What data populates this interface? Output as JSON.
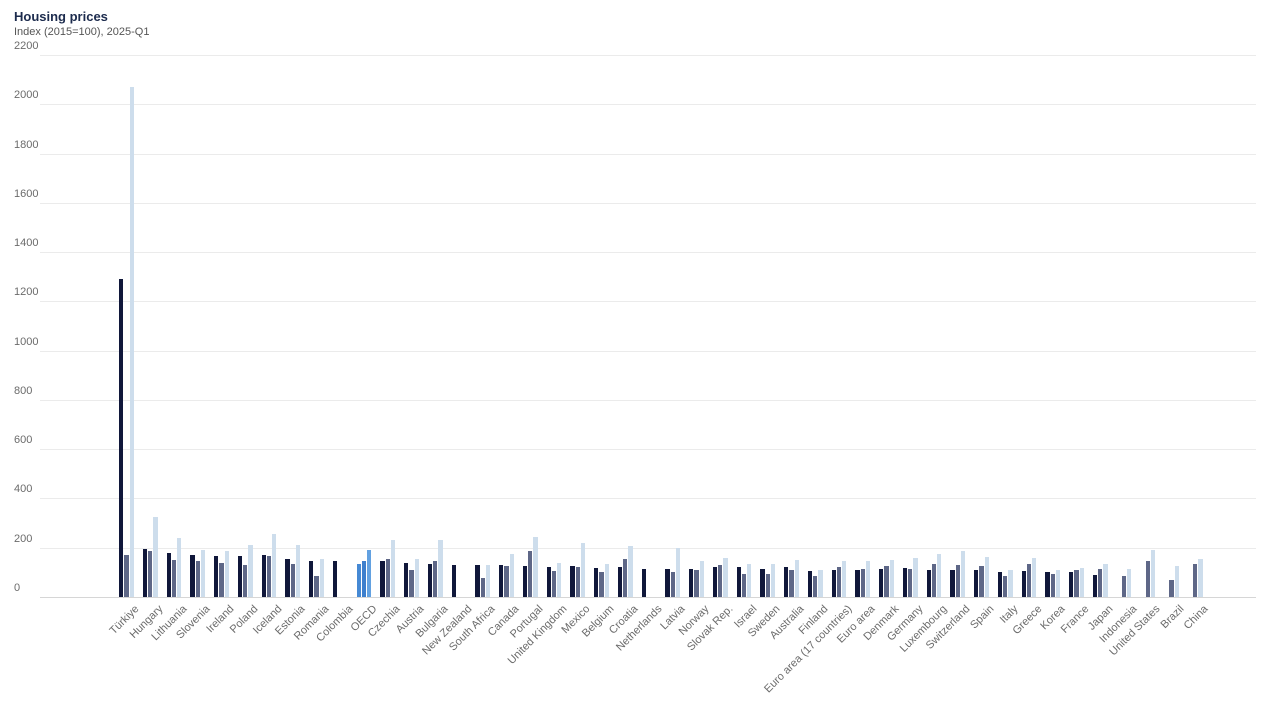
{
  "chart": {
    "title": "Housing prices",
    "subtitle": "Index (2015=100), 2025-Q1"
  },
  "chart_data": {
    "type": "bar",
    "title": "Housing prices",
    "subtitle": "Index (2015=100), 2025-Q1",
    "xlabel": "",
    "ylabel": "",
    "ylim": [
      0,
      2200
    ],
    "yticks": [
      0,
      200,
      400,
      600,
      800,
      1000,
      1200,
      1400,
      1600,
      1800,
      2000,
      2200
    ],
    "grid": true,
    "legend_position": "none-visible",
    "highlight_category": "OECD",
    "categories": [
      "Türkiye",
      "Hungary",
      "Lithuania",
      "Slovenia",
      "Ireland",
      "Poland",
      "Iceland",
      "Estonia",
      "Romania",
      "Colombia",
      "OECD",
      "Czechia",
      "Austria",
      "Bulgaria",
      "New Zealand",
      "South Africa",
      "Canada",
      "Portugal",
      "United Kingdom",
      "Mexico",
      "Belgium",
      "Croatia",
      "Netherlands",
      "Latvia",
      "Norway",
      "Slovak Rep.",
      "Israel",
      "Sweden",
      "Australia",
      "Finland",
      "Euro area (17 countries)",
      "Euro area",
      "Denmark",
      "Germany",
      "Luxembourg",
      "Switzerland",
      "Spain",
      "Italy",
      "Greece",
      "Korea",
      "France",
      "Japan",
      "Indonesia",
      "United States",
      "Brazil",
      "China"
    ],
    "series": [
      {
        "name": "series_dark",
        "values": [
          1290,
          195,
          180,
          170,
          165,
          165,
          170,
          155,
          145,
          145,
          135,
          145,
          137,
          135,
          128,
          130,
          130,
          127,
          122,
          124,
          118,
          120,
          115,
          115,
          115,
          120,
          122,
          115,
          120,
          105,
          110,
          110,
          115,
          117,
          110,
          108,
          111,
          100,
          105,
          100,
          100,
          90,
          null,
          null,
          null,
          null
        ]
      },
      {
        "name": "series_medium",
        "values": [
          170,
          185,
          150,
          145,
          140,
          130,
          168,
          135,
          85,
          null,
          148,
          155,
          110,
          145,
          null,
          78,
          125,
          185,
          105,
          122,
          100,
          155,
          null,
          100,
          108,
          130,
          92,
          92,
          110,
          85,
          120,
          112,
          125,
          113,
          135,
          128,
          125,
          85,
          135,
          92,
          108,
          115,
          85,
          148,
          70,
          135
        ]
      },
      {
        "name": "series_light",
        "values": [
          2070,
          325,
          240,
          190,
          185,
          210,
          255,
          210,
          155,
          null,
          190,
          230,
          155,
          230,
          null,
          130,
          175,
          245,
          140,
          218,
          132,
          208,
          null,
          198,
          148,
          158,
          132,
          135,
          150,
          110,
          148,
          148,
          150,
          158,
          175,
          185,
          163,
          110,
          160,
          110,
          118,
          132,
          115,
          192,
          125,
          155
        ]
      }
    ],
    "colors": {
      "series_dark": "#10173a",
      "series_medium": "#5e6787",
      "series_light": "#cdddec",
      "oecd_highlight": [
        "#4589d4",
        "#3d7fcd",
        "#62a1e1"
      ],
      "gridline": "#ebebeb",
      "axis_line": "#d6d6d6",
      "title_text": "#1c2b4d",
      "subtitle_text": "#555555",
      "tick_text": "#6b6b6b",
      "background": "#ffffff"
    }
  }
}
